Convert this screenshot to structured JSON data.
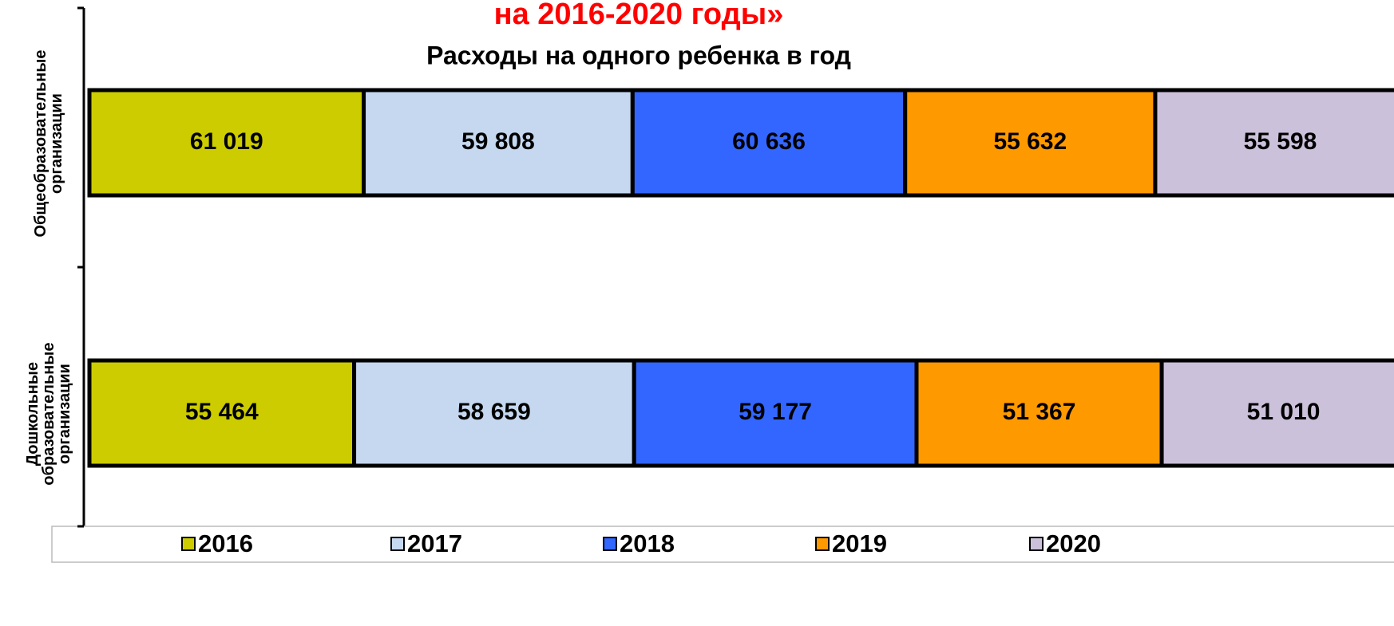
{
  "chart_data": {
    "type": "bar",
    "orientation": "horizontal",
    "stacking": "percent",
    "title": "на 2016-2020 годы»",
    "subtitle": "Расходы на одного ребенка в год",
    "categories": [
      [
        "Общеобразовательные",
        "организации"
      ],
      [
        "Дошкольные",
        "образовательные",
        "организации"
      ]
    ],
    "series": [
      {
        "name": "2016",
        "color": "#cccc00",
        "values": [
          61019,
          55464
        ],
        "value_labels": [
          "61 019",
          "55 464"
        ]
      },
      {
        "name": "2017",
        "color": "#c6d8f0",
        "values": [
          59808,
          58659
        ],
        "value_labels": [
          "59 808",
          "58 659"
        ]
      },
      {
        "name": "2018",
        "color": "#3366ff",
        "values": [
          60636,
          59177
        ],
        "value_labels": [
          "60 636",
          "59 177"
        ]
      },
      {
        "name": "2019",
        "color": "#ff9900",
        "values": [
          55632,
          51367
        ],
        "value_labels": [
          "55 632",
          "51 367"
        ]
      },
      {
        "name": "2020",
        "color": "#ccc1da",
        "values": [
          55598,
          51010
        ],
        "value_labels": [
          "55 598",
          "51 010"
        ]
      }
    ],
    "legend": "bottom"
  }
}
